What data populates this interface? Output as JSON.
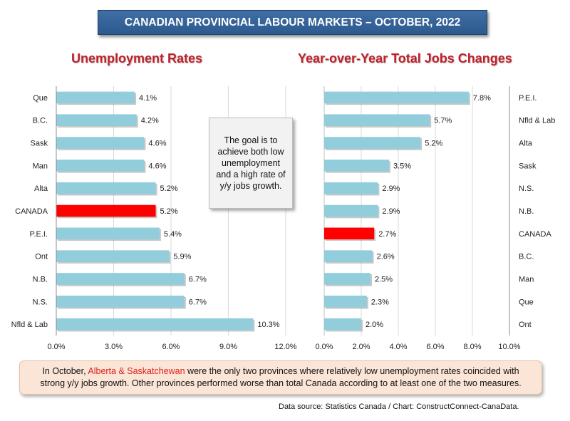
{
  "title": "CANADIAN PROVINCIAL LABOUR MARKETS – OCTOBER, 2022",
  "note": "The goal is to achieve both low unemployment and a high rate of y/y jobs growth.",
  "summary": {
    "before": "In October, ",
    "highlight": "Alberta & Saskatchewan",
    "after": " were the only two provinces where relatively low unemployment rates coincided with strong y/y jobs growth. Other provinces performed worse than total Canada according to at least one of the two measures."
  },
  "source": "Data source: Statistics Canada / Chart: ConstructConnect-CanaData.",
  "colors": {
    "bar": "#92cddc",
    "highlight": "#ff0000",
    "title_bg": "#2d5a8e",
    "panel_title": "#c0202a"
  },
  "chart_data": [
    {
      "type": "bar",
      "orientation": "horizontal",
      "title": "Unemployment Rates",
      "categories": [
        "Que",
        "B.C.",
        "Sask",
        "Man",
        "Alta",
        "CANADA",
        "P.E.I.",
        "Ont",
        "N.B.",
        "N.S.",
        "Nfld & Lab"
      ],
      "values": [
        4.1,
        4.2,
        4.6,
        4.6,
        5.2,
        5.2,
        5.4,
        5.9,
        6.7,
        6.7,
        10.3
      ],
      "value_labels": [
        "4.1%",
        "4.2%",
        "4.6%",
        "4.6%",
        "5.2%",
        "5.2%",
        "5.4%",
        "5.9%",
        "6.7%",
        "6.7%",
        "10.3%"
      ],
      "highlight": "CANADA",
      "xlim": [
        0,
        12
      ],
      "ticks": [
        0,
        3,
        6,
        9,
        12
      ],
      "tick_labels": [
        "0.0%",
        "3.0%",
        "6.0%",
        "9.0%",
        "12.0%"
      ],
      "category_axis": "left",
      "grid": true
    },
    {
      "type": "bar",
      "orientation": "horizontal",
      "title": "Year-over-Year Total Jobs Changes",
      "categories": [
        "P.E.I.",
        "Nfld & Lab",
        "Alta",
        "Sask",
        "N.S.",
        "N.B.",
        "CANADA",
        "B.C.",
        "Man",
        "Que",
        "Ont"
      ],
      "values": [
        7.8,
        5.7,
        5.2,
        3.5,
        2.9,
        2.9,
        2.7,
        2.6,
        2.5,
        2.3,
        2.0
      ],
      "value_labels": [
        "7.8%",
        "5.7%",
        "5.2%",
        "3.5%",
        "2.9%",
        "2.9%",
        "2.7%",
        "2.6%",
        "2.5%",
        "2.3%",
        "2.0%"
      ],
      "highlight": "CANADA",
      "xlim": [
        0,
        10
      ],
      "ticks": [
        0,
        2,
        4,
        6,
        8,
        10
      ],
      "tick_labels": [
        "0.0%",
        "2.0%",
        "4.0%",
        "6.0%",
        "8.0%",
        "10.0%"
      ],
      "category_axis": "right",
      "grid": true
    }
  ]
}
